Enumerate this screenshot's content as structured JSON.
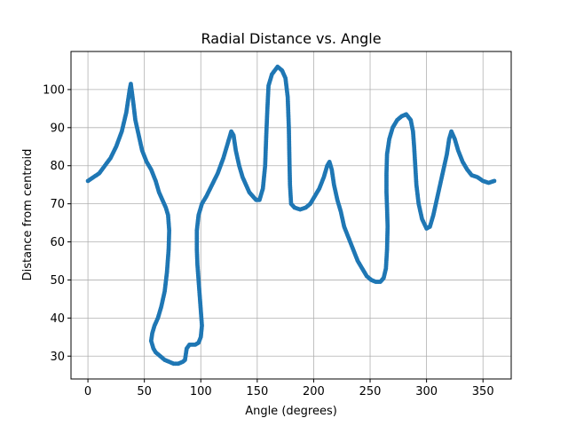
{
  "chart_data": {
    "type": "scatter",
    "title": "Radial Distance vs. Angle",
    "xlabel": "Angle (degrees)",
    "ylabel": "Distance from centroid",
    "xlim": [
      -15,
      375
    ],
    "ylim": [
      24,
      110
    ],
    "xticks": [
      0,
      50,
      100,
      150,
      200,
      250,
      300,
      350
    ],
    "yticks": [
      30,
      40,
      50,
      60,
      70,
      80,
      90,
      100
    ],
    "grid": true,
    "series": [
      {
        "color": "#1f77b4",
        "points": [
          [
            0,
            76
          ],
          [
            5,
            77
          ],
          [
            10,
            78
          ],
          [
            15,
            80
          ],
          [
            20,
            82
          ],
          [
            25,
            85
          ],
          [
            30,
            89
          ],
          [
            34,
            94
          ],
          [
            37,
            100
          ],
          [
            38,
            101.5
          ],
          [
            40,
            97
          ],
          [
            42,
            92
          ],
          [
            45,
            88
          ],
          [
            48,
            84
          ],
          [
            52,
            81
          ],
          [
            56,
            79
          ],
          [
            60,
            76
          ],
          [
            63,
            73
          ],
          [
            66,
            71
          ],
          [
            69,
            69
          ],
          [
            71,
            67
          ],
          [
            72,
            63
          ],
          [
            71.5,
            58
          ],
          [
            70,
            52
          ],
          [
            68,
            47
          ],
          [
            65,
            43
          ],
          [
            62,
            40
          ],
          [
            59,
            38
          ],
          [
            57,
            36
          ],
          [
            56,
            34
          ],
          [
            58,
            32
          ],
          [
            60,
            31
          ],
          [
            64,
            30
          ],
          [
            68,
            29
          ],
          [
            72,
            28.5
          ],
          [
            76,
            28
          ],
          [
            80,
            28
          ],
          [
            84,
            28.5
          ],
          [
            86,
            29
          ],
          [
            87,
            31
          ],
          [
            87.5,
            32
          ],
          [
            90,
            33
          ],
          [
            95,
            33
          ],
          [
            98,
            33.5
          ],
          [
            100,
            35
          ],
          [
            101,
            38
          ],
          [
            100,
            42
          ],
          [
            99,
            46
          ],
          [
            98,
            50
          ],
          [
            97,
            54
          ],
          [
            96.5,
            58
          ],
          [
            96.5,
            63
          ],
          [
            98,
            67
          ],
          [
            101,
            70
          ],
          [
            105,
            72
          ],
          [
            110,
            75
          ],
          [
            115,
            78
          ],
          [
            120,
            82
          ],
          [
            124,
            86
          ],
          [
            127,
            89
          ],
          [
            129,
            88
          ],
          [
            131,
            84
          ],
          [
            134,
            80
          ],
          [
            137,
            77
          ],
          [
            140,
            75
          ],
          [
            143,
            73
          ],
          [
            146,
            72
          ],
          [
            149,
            71
          ],
          [
            152,
            71
          ],
          [
            155,
            74
          ],
          [
            157,
            80
          ],
          [
            158,
            88
          ],
          [
            159,
            95
          ],
          [
            160,
            101
          ],
          [
            163,
            104
          ],
          [
            168,
            106
          ],
          [
            172,
            105
          ],
          [
            175,
            103
          ],
          [
            177,
            98
          ],
          [
            178,
            90
          ],
          [
            178.5,
            82
          ],
          [
            179,
            75
          ],
          [
            180,
            70
          ],
          [
            183,
            69
          ],
          [
            188,
            68.5
          ],
          [
            193,
            69
          ],
          [
            197,
            70
          ],
          [
            201,
            72
          ],
          [
            205,
            74
          ],
          [
            209,
            77
          ],
          [
            212,
            80
          ],
          [
            214,
            81
          ],
          [
            216,
            79
          ],
          [
            218,
            75
          ],
          [
            221,
            71
          ],
          [
            224,
            68
          ],
          [
            227,
            64
          ],
          [
            231,
            61
          ],
          [
            235,
            58
          ],
          [
            239,
            55
          ],
          [
            243,
            53
          ],
          [
            247,
            51
          ],
          [
            251,
            50
          ],
          [
            255,
            49.5
          ],
          [
            259,
            49.5
          ],
          [
            262,
            50.5
          ],
          [
            264,
            53
          ],
          [
            265,
            58
          ],
          [
            265.5,
            64
          ],
          [
            265,
            69
          ],
          [
            264.5,
            73
          ],
          [
            264.5,
            78
          ],
          [
            265,
            83
          ],
          [
            267,
            87
          ],
          [
            270,
            90
          ],
          [
            274,
            92
          ],
          [
            278,
            93
          ],
          [
            282,
            93.5
          ],
          [
            286,
            92
          ],
          [
            288,
            89
          ],
          [
            289,
            85
          ],
          [
            290,
            80
          ],
          [
            291,
            75
          ],
          [
            293,
            70
          ],
          [
            296,
            66
          ],
          [
            300,
            63.5
          ],
          [
            303,
            64
          ],
          [
            306,
            67
          ],
          [
            309,
            71
          ],
          [
            312,
            75
          ],
          [
            315,
            79
          ],
          [
            318,
            83
          ],
          [
            320,
            87
          ],
          [
            322,
            89
          ],
          [
            325,
            87
          ],
          [
            328,
            84
          ],
          [
            332,
            81
          ],
          [
            336,
            79
          ],
          [
            340,
            77.5
          ],
          [
            345,
            77
          ],
          [
            350,
            76
          ],
          [
            355,
            75.5
          ],
          [
            360,
            76
          ]
        ]
      }
    ]
  }
}
